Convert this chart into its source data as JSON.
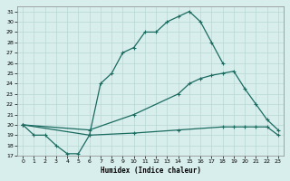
{
  "xlabel": "Humidex (Indice chaleur)",
  "xlim": [
    -0.5,
    23.5
  ],
  "ylim": [
    17,
    31.5
  ],
  "yticks": [
    17,
    18,
    19,
    20,
    21,
    22,
    23,
    24,
    25,
    26,
    27,
    28,
    29,
    30,
    31
  ],
  "xticks": [
    0,
    1,
    2,
    3,
    4,
    5,
    6,
    7,
    8,
    9,
    10,
    11,
    12,
    13,
    14,
    15,
    16,
    17,
    18,
    19,
    20,
    21,
    22,
    23
  ],
  "background_color": "#d8eeec",
  "grid_color": "#b8d8d4",
  "line_color": "#1a6b60",
  "line1_x": [
    0,
    1,
    2,
    3,
    4,
    5,
    6,
    7,
    8,
    9,
    10,
    11,
    12,
    13,
    14,
    15,
    16,
    17,
    18
  ],
  "line1_y": [
    20,
    19,
    19,
    18,
    17.2,
    17.2,
    19,
    24,
    25,
    27,
    27.5,
    29,
    29,
    30,
    30.5,
    31,
    30,
    28,
    26
  ],
  "line2_x": [
    0,
    6,
    10,
    14,
    15,
    16,
    17,
    18,
    19,
    20,
    21,
    22,
    23
  ],
  "line2_y": [
    20,
    19.5,
    21,
    23,
    24,
    24.5,
    24.8,
    25,
    25.2,
    23.5,
    22,
    20.5,
    19.5
  ],
  "line3_x": [
    0,
    6,
    10,
    14,
    18,
    19,
    20,
    21,
    22,
    23
  ],
  "line3_y": [
    20,
    19,
    19.2,
    19.5,
    19.8,
    19.8,
    19.8,
    19.8,
    19.8,
    19.0
  ],
  "markersize": 3,
  "linewidth": 0.9
}
